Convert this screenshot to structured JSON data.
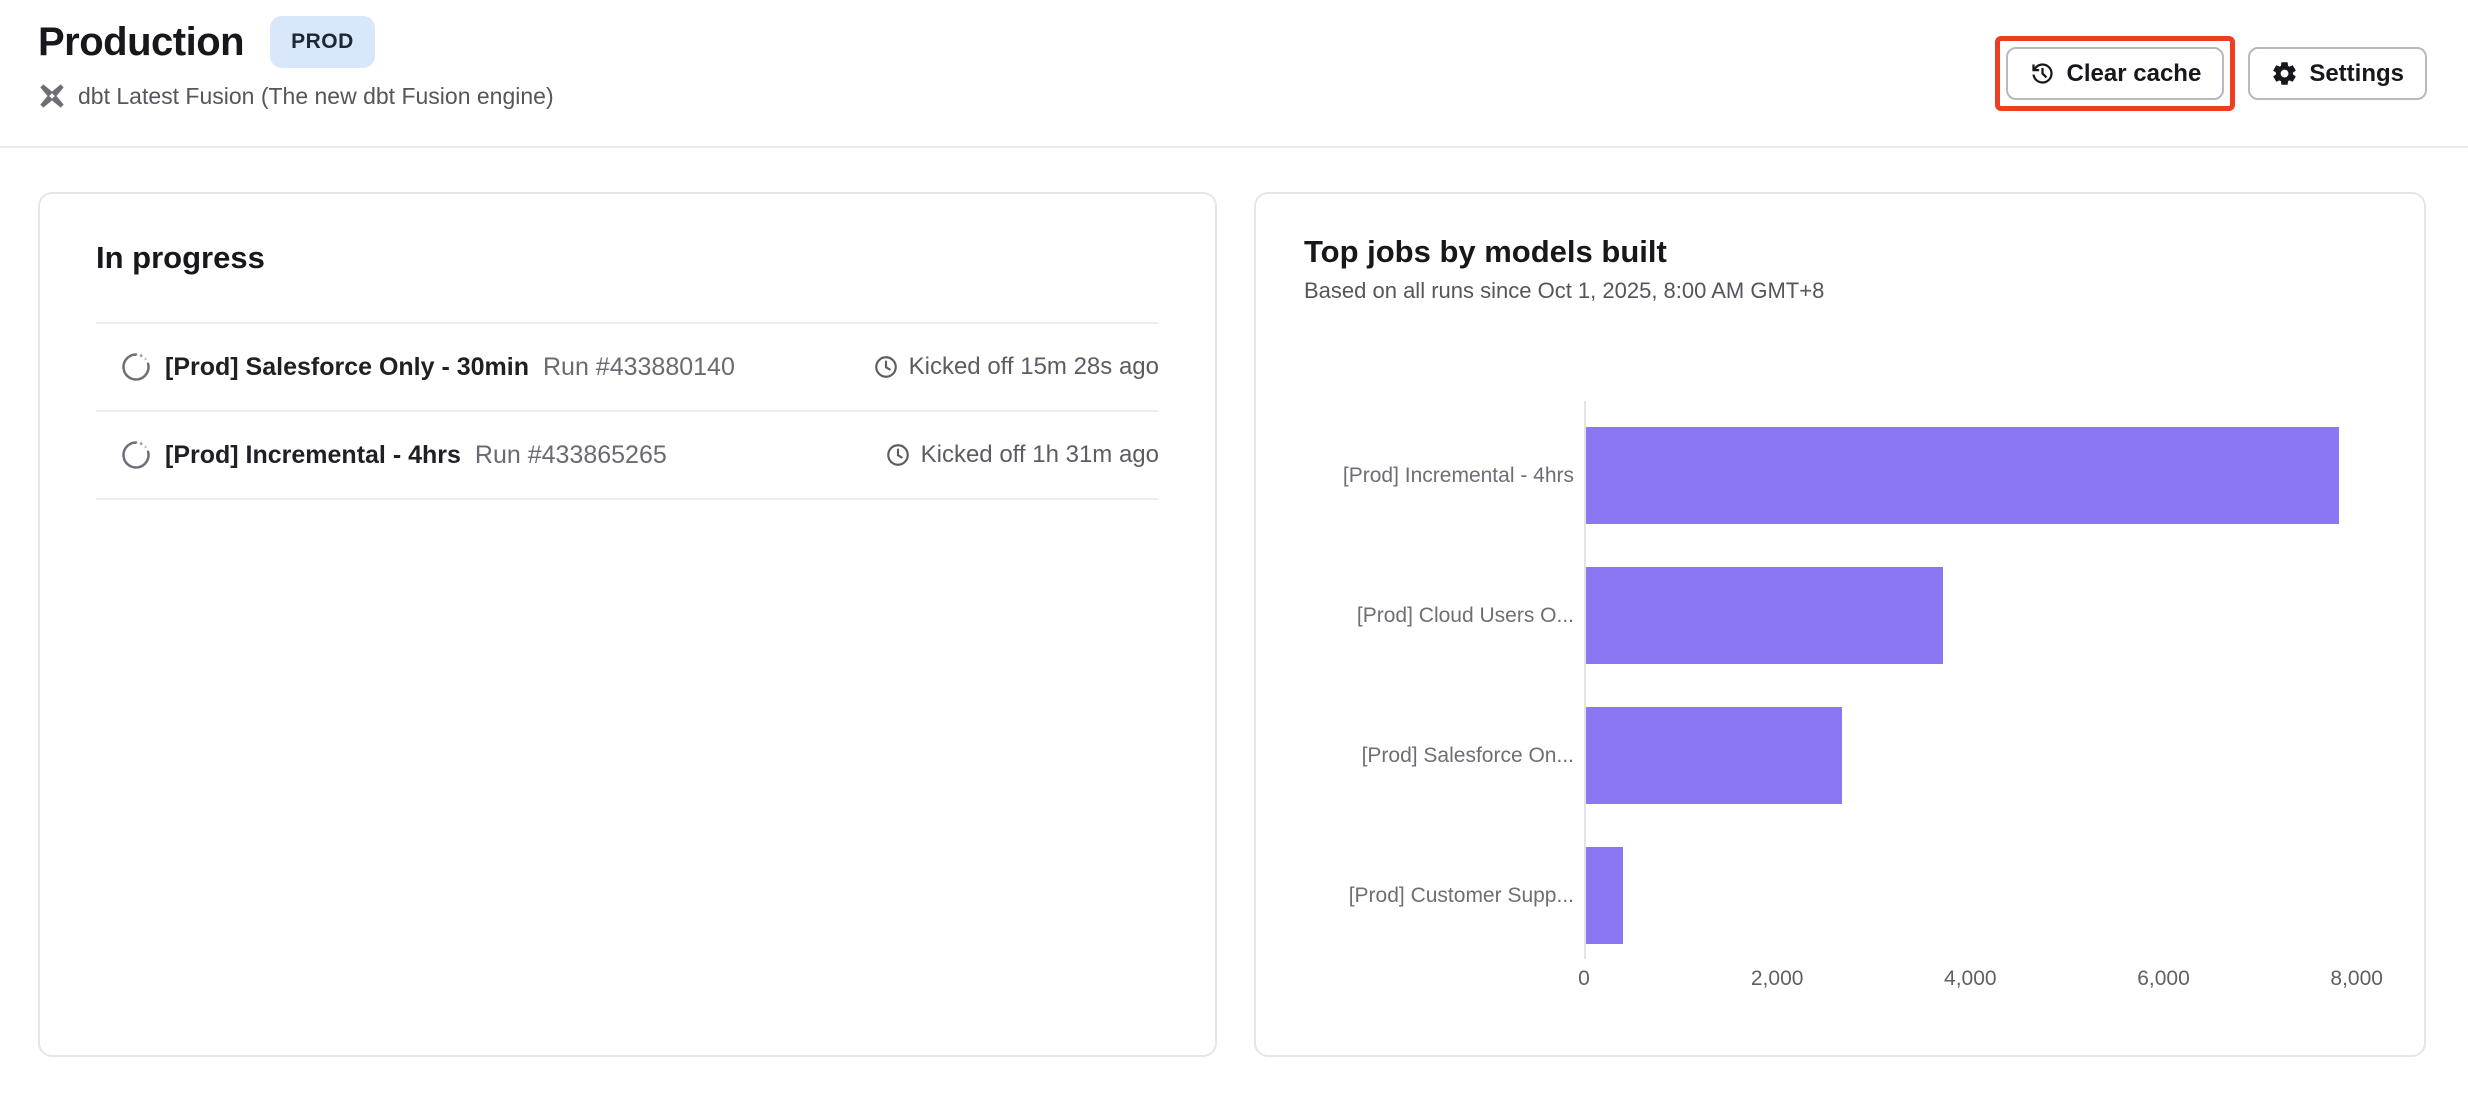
{
  "page": {
    "title": "Production",
    "env_badge": "PROD",
    "engine_subtitle": "dbt Latest Fusion (The new dbt Fusion engine)"
  },
  "toolbar": {
    "clear_cache_label": "Clear cache",
    "settings_label": "Settings"
  },
  "in_progress": {
    "title": "In progress",
    "runs": [
      {
        "job_name": "[Prod] Salesforce Only - 30min",
        "run_number": "Run #433880140",
        "kicked_off": "Kicked off 15m 28s ago"
      },
      {
        "job_name": "[Prod] Incremental - 4hrs",
        "run_number": "Run #433865265",
        "kicked_off": "Kicked off 1h 31m ago"
      }
    ]
  },
  "chart_card": {
    "title": "Top jobs by models built",
    "subtitle": "Based on all runs since Oct 1, 2025, 8:00 AM GMT+8"
  },
  "chart_data": {
    "type": "bar",
    "orientation": "horizontal",
    "title": "Top jobs by models built",
    "categories": [
      "[Prod] Incremental - 4hrs",
      "[Prod] Cloud Users O...",
      "[Prod] Salesforce On...",
      "[Prod] Customer Supp..."
    ],
    "values": [
      7800,
      3700,
      2650,
      380
    ],
    "xlim": [
      0,
      8200
    ],
    "xticks": [
      0,
      2000,
      4000,
      6000,
      8000
    ],
    "xtick_labels": [
      "0",
      "2,000",
      "4,000",
      "6,000",
      "8,000"
    ],
    "grid": false,
    "legend": "none",
    "bar_color": "#8b77f2"
  },
  "icons": {
    "engine": "dbt-fusion-icon",
    "clear_cache": "history-icon",
    "settings": "gear-icon",
    "run_status": "spinner-icon",
    "kicked_off": "clock-icon"
  },
  "colors": {
    "accent_bar": "#8b77f2",
    "annotation_highlight": "#ee3d20",
    "badge_background": "#d9e7fb",
    "card_border": "#e5e5ea",
    "muted_text": "#5c5c64"
  }
}
